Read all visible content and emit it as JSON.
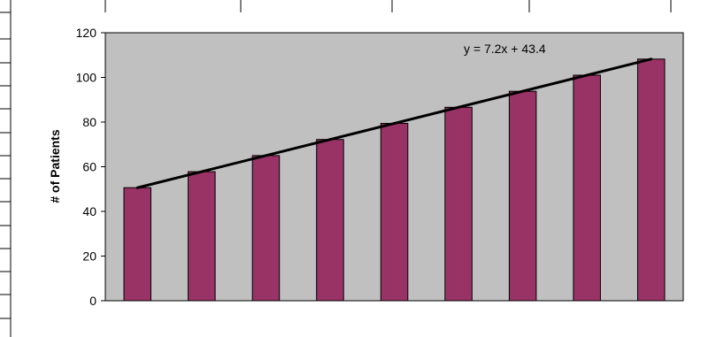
{
  "chart_data": {
    "type": "bar",
    "categories": [
      "",
      "",
      "",
      "",
      "",
      "",
      "",
      "",
      ""
    ],
    "values": [
      50.6,
      57.8,
      65.0,
      72.2,
      79.4,
      86.6,
      93.8,
      101.0,
      108.2
    ],
    "ylabel": "# of Patients",
    "xlabel": "",
    "ylim": [
      0,
      120
    ],
    "yticks": [
      0,
      20,
      40,
      60,
      80,
      100,
      120
    ],
    "trendline": {
      "label": "y = 7.2x + 43.4",
      "slope": 7.2,
      "intercept": 43.4
    },
    "grid": false,
    "legend": "none",
    "colors": {
      "bar": "#993366",
      "plot_background": "#c0c0c0",
      "trendline": "#000000"
    }
  }
}
